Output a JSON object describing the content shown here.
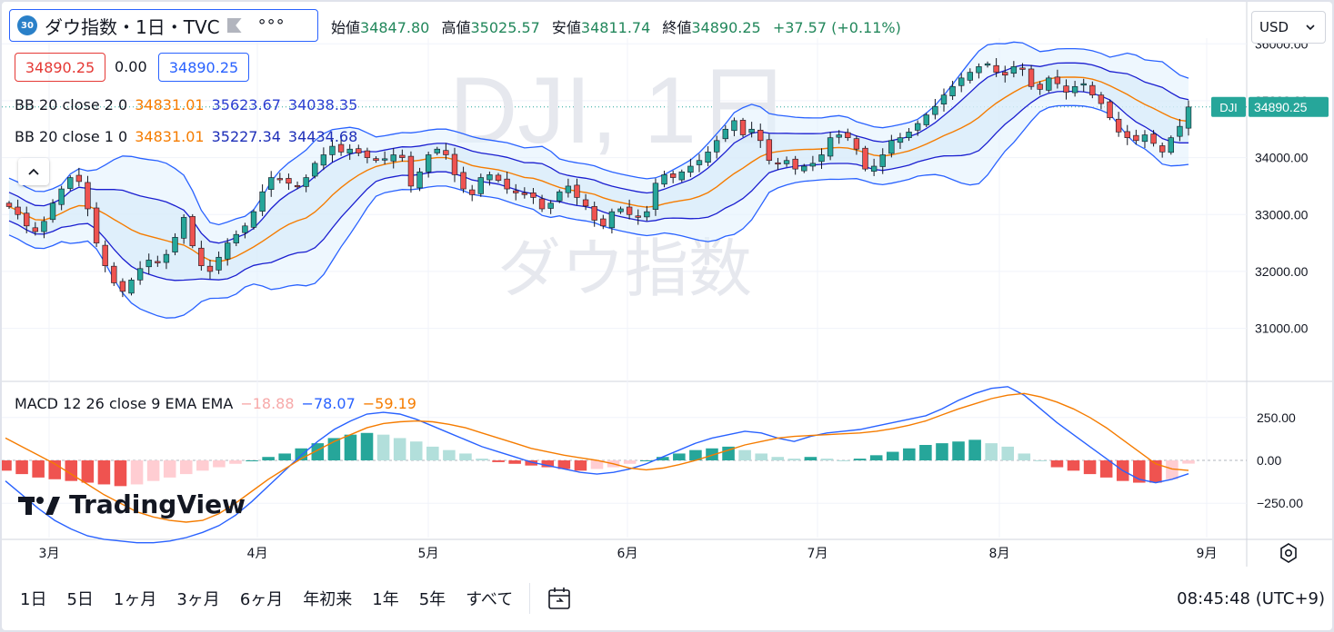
{
  "header": {
    "badge": "30",
    "symbol_title": "ダウ指数・1日・TVC",
    "more": "°°°",
    "ohlc": {
      "open_label": "始値",
      "open": "34847.80",
      "high_label": "高値",
      "high": "35025.57",
      "low_label": "安値",
      "low": "34811.74",
      "close_label": "終値",
      "close": "34890.25",
      "change": "+37.57 (+0.11%)"
    },
    "price_boxes": {
      "bid": "34890.25",
      "spread": "0.00",
      "ask": "34890.25"
    },
    "currency": "USD"
  },
  "indicators": {
    "bb2": {
      "label": "BB 20 close 2 0",
      "basis": "34831.01",
      "upper": "35623.67",
      "lower": "34038.35"
    },
    "bb1": {
      "label": "BB 20 close 1 0",
      "basis": "34831.01",
      "upper": "35227.34",
      "lower": "34434.68"
    },
    "macd": {
      "label": "MACD 12 26 close 9 EMA EMA",
      "hist": "−18.88",
      "macd": "−78.07",
      "signal": "−59.19"
    }
  },
  "watermark": {
    "symbol": "DJI, 1日",
    "name": "ダウ指数"
  },
  "price_tag": {
    "symbol": "DJI",
    "value": "34890.25"
  },
  "logo": {
    "text": "TradingView"
  },
  "colors": {
    "up": "#26a69a",
    "down": "#ef5350",
    "bb_outer": "#2962ff",
    "bb_inner": "#1a1ed0",
    "basis": "#f57c00",
    "band_fill": "#e3f2fd",
    "macd_line": "#2962ff",
    "signal_line": "#f57c00"
  },
  "chart_data": [
    {
      "type": "candlestick",
      "title": "ダウ指数・1日・TVC",
      "price_axis_ticks": [
        "31000.00",
        "32000.00",
        "33000.00",
        "34000.00"
      ],
      "price_axis_partial": [
        "35000.00",
        "36000.00"
      ],
      "ylim": [
        30100,
        36100
      ],
      "time_axis_labels": [
        "3月",
        "4月",
        "5月",
        "6月",
        "7月",
        "8月",
        "9月"
      ],
      "close_series": [
        33140,
        33000,
        32800,
        32700,
        32880,
        33200,
        33450,
        33650,
        33580,
        33100,
        32500,
        32100,
        31800,
        31650,
        31850,
        32050,
        32200,
        32150,
        32300,
        32600,
        32950,
        32450,
        32100,
        32000,
        32250,
        32500,
        32650,
        32800,
        33050,
        33400,
        33650,
        33620,
        33550,
        33500,
        33650,
        33900,
        34050,
        34200,
        34100,
        34150,
        34080,
        34000,
        33950,
        33980,
        34050,
        34000,
        33500,
        33750,
        34050,
        34150,
        34050,
        33700,
        33450,
        33350,
        33650,
        33700,
        33600,
        33450,
        33380,
        33350,
        33300,
        33100,
        33200,
        33400,
        33500,
        33300,
        33150,
        32900,
        32800,
        33050,
        33100,
        33000,
        32950,
        33050,
        33550,
        33700,
        33650,
        33750,
        33850,
        33950,
        34100,
        34300,
        34500,
        34650,
        34400,
        34500,
        34300,
        33950,
        33900,
        33950,
        33800,
        33850,
        33900,
        34050,
        34350,
        34400,
        34350,
        34150,
        33800,
        33850,
        34050,
        34300,
        34350,
        34450,
        34600,
        34750,
        34900,
        35100,
        35250,
        35400,
        35500,
        35600,
        35650,
        35500,
        35450,
        35600,
        35550,
        35250,
        35200,
        35400,
        35300,
        35150,
        35250,
        35300,
        35100,
        34950,
        34700,
        34450,
        34350,
        34300,
        34400,
        34250,
        34100,
        34350,
        34550,
        34890
      ],
      "last_price": 34890.25
    },
    {
      "type": "macd",
      "title": "MACD 12 26 close 9 EMA EMA",
      "axis_ticks": [
        "250.00",
        "0.00",
        "−250.00"
      ],
      "ylim": [
        -450,
        450
      ],
      "macd_line": [
        -120,
        -200,
        -280,
        -350,
        -400,
        -440,
        -460,
        -470,
        -480,
        -480,
        -470,
        -450,
        -420,
        -380,
        -320,
        -240,
        -150,
        -60,
        30,
        110,
        180,
        230,
        270,
        280,
        270,
        240,
        200,
        160,
        120,
        80,
        50,
        20,
        -10,
        -30,
        -50,
        -70,
        -80,
        -70,
        -50,
        -20,
        20,
        60,
        100,
        130,
        150,
        170,
        160,
        130,
        110,
        140,
        160,
        170,
        180,
        200,
        220,
        240,
        260,
        300,
        350,
        390,
        420,
        430,
        380,
        300,
        220,
        150,
        80,
        10,
        -60,
        -110,
        -130,
        -110,
        -78
      ],
      "signal_line": [
        130,
        80,
        30,
        -20,
        -80,
        -140,
        -200,
        -250,
        -300,
        -330,
        -350,
        -360,
        -350,
        -310,
        -250,
        -180,
        -110,
        -50,
        10,
        60,
        110,
        150,
        190,
        215,
        225,
        230,
        225,
        210,
        190,
        160,
        130,
        100,
        70,
        50,
        30,
        15,
        0,
        -20,
        -45,
        -55,
        -45,
        -25,
        0,
        30,
        60,
        90,
        110,
        130,
        140,
        145,
        150,
        155,
        160,
        170,
        185,
        205,
        230,
        265,
        300,
        330,
        360,
        380,
        390,
        370,
        340,
        300,
        250,
        190,
        120,
        50,
        -20,
        -50,
        -59
      ],
      "histogram": [
        -60,
        -80,
        -100,
        -110,
        -120,
        -130,
        -140,
        -150,
        -140,
        -120,
        -100,
        -80,
        -60,
        -40,
        -20,
        0,
        20,
        40,
        70,
        100,
        130,
        150,
        160,
        150,
        130,
        110,
        80,
        60,
        40,
        10,
        -10,
        -20,
        -30,
        -40,
        -50,
        -60,
        -50,
        -40,
        -20,
        0,
        20,
        40,
        60,
        70,
        80,
        60,
        40,
        20,
        10,
        20,
        10,
        0,
        10,
        30,
        50,
        70,
        90,
        100,
        110,
        120,
        100,
        80,
        40,
        0,
        -40,
        -60,
        -80,
        -100,
        -120,
        -130,
        -130,
        -110,
        -19
      ]
    }
  ]
}
